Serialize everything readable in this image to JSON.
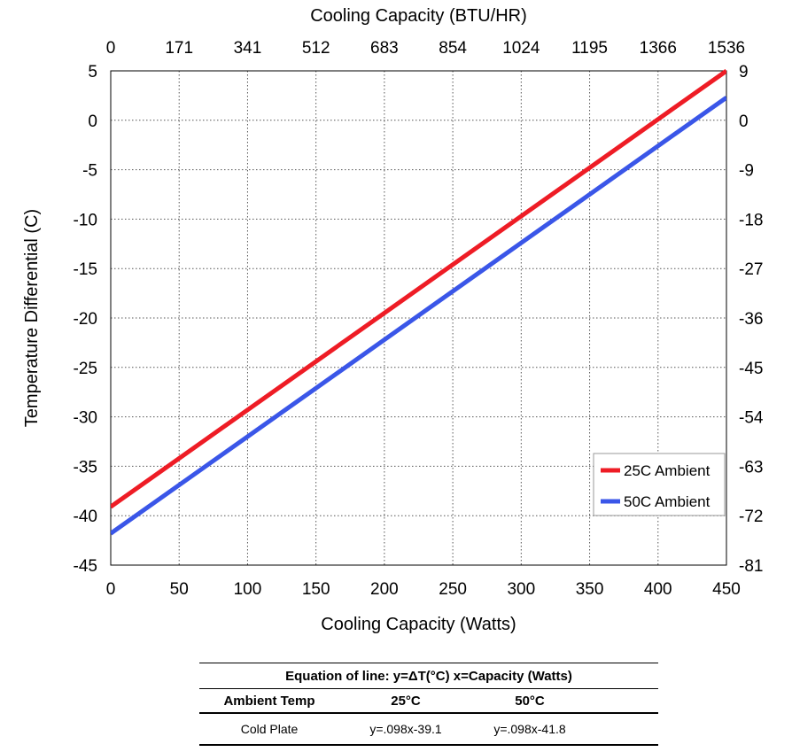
{
  "chart_data": {
    "type": "line",
    "title": "",
    "xlabel": "Cooling Capacity (Watts)",
    "ylabel": "Temperature Differential (C)",
    "x2label": "Cooling Capacity (BTU/HR)",
    "xlim": [
      0,
      450
    ],
    "ylim": [
      -45,
      5
    ],
    "x_ticks": [
      "0",
      "50",
      "100",
      "150",
      "200",
      "250",
      "300",
      "350",
      "400",
      "450"
    ],
    "y_ticks": [
      "5",
      "0",
      "-5",
      "-10",
      "-15",
      "-20",
      "-25",
      "-30",
      "-35",
      "-40",
      "-45"
    ],
    "x2_ticks": [
      "0",
      "171",
      "341",
      "512",
      "683",
      "854",
      "1024",
      "1195",
      "1366",
      "1536"
    ],
    "y2_ticks": [
      "9",
      "0",
      "-9",
      "-18",
      "-27",
      "-36",
      "-45",
      "-54",
      "-63",
      "-72",
      "-81"
    ],
    "grid": true,
    "legend_position": "bottom-right",
    "series": [
      {
        "name": "25C Ambient",
        "color": "#ee1c25",
        "x": [
          0,
          450
        ],
        "y": [
          -39.1,
          5.0
        ]
      },
      {
        "name": "50C Ambient",
        "color": "#3a56e8",
        "x": [
          0,
          450
        ],
        "y": [
          -41.8,
          2.3
        ]
      }
    ]
  },
  "table": {
    "caption": "Equation of line: y=ΔT(°C)  x=Capacity (Watts)",
    "headers": [
      "Ambient Temp",
      "25°C",
      "50°C"
    ],
    "rows": [
      [
        "Cold Plate",
        "y=.098x-39.1",
        "y=.098x-41.8"
      ]
    ]
  }
}
